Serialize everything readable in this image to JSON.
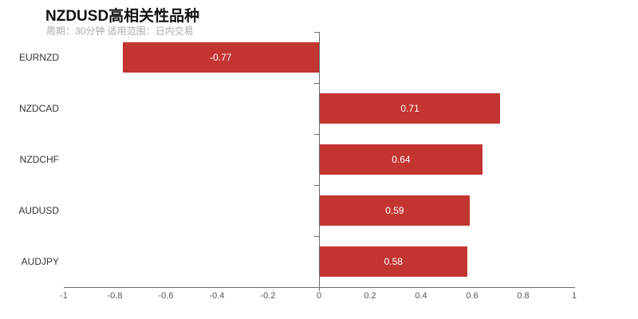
{
  "header": {
    "title": "NZDUSD高相关性品种",
    "subtitle": "周期：30分钟 适用范围：日内交易"
  },
  "colors": {
    "bar": "#c23531",
    "bar_label": "#ffffff",
    "axis": "#6b6b6b",
    "title": "#111111",
    "subtitle": "#aaaaaa",
    "axis_label": "#555555",
    "category_label": "#333333"
  },
  "chart_data": {
    "type": "bar",
    "orientation": "horizontal",
    "title": "NZDUSD高相关性品种",
    "subtitle": "周期：30分钟 适用范围：日内交易",
    "categories": [
      "EURNZD",
      "NZDCAD",
      "NZDCHF",
      "AUDUSD",
      "AUDJPY"
    ],
    "values": [
      -0.77,
      0.71,
      0.64,
      0.59,
      0.58
    ],
    "value_label_position": "inside-center",
    "xlim": [
      -1,
      1
    ],
    "x_ticks": [
      -1,
      -0.8,
      -0.6,
      -0.4,
      -0.2,
      0,
      0.2,
      0.4,
      0.6,
      0.8,
      1
    ],
    "zero_axis": true,
    "grid": false,
    "legend": null
  }
}
